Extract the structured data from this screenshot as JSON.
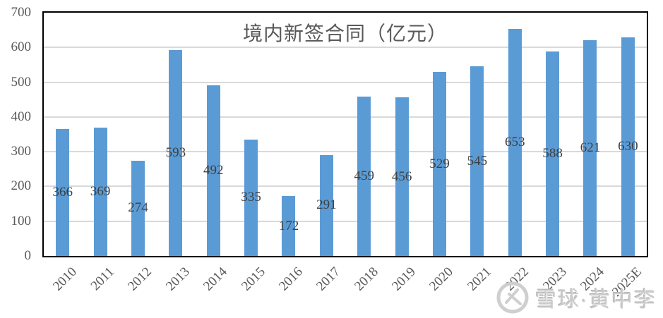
{
  "chart_data": {
    "type": "bar",
    "title": "境内新签合同（亿元）",
    "categories": [
      "2010",
      "2011",
      "2012",
      "2013",
      "2014",
      "2015",
      "2016",
      "2017",
      "2018",
      "2019",
      "2020",
      "2021",
      "2022",
      "2023",
      "2024",
      "2025E"
    ],
    "values": [
      366,
      369,
      274,
      593,
      492,
      335,
      172,
      291,
      459,
      456,
      529,
      545,
      653,
      588,
      621,
      630
    ],
    "xlabel": "",
    "ylabel": "",
    "ylim": [
      0,
      700
    ],
    "ytick_step": 100,
    "grid": "horizontal",
    "legend": "none",
    "value_labels_position": "middle-of-bar",
    "bar_color": "#5b9bd5",
    "value_label_color": "#3f3f3f",
    "axis_label_color": "#595959",
    "gridline_color": "#d9d9d9",
    "plot_border_color": "#000000",
    "title_color": "#595959"
  },
  "watermark": {
    "text": "雪球·黄中李",
    "logo": "xueqiu-logo",
    "color": "#cccccc"
  }
}
